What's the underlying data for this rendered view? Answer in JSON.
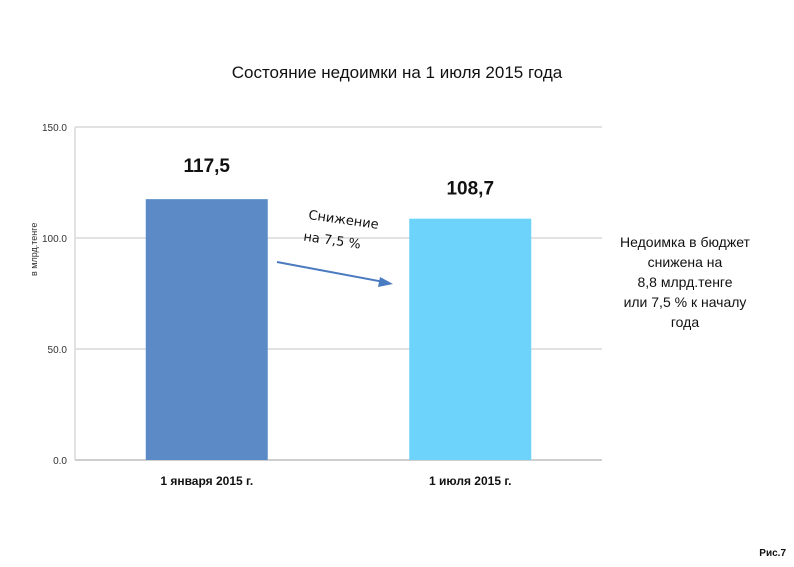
{
  "chart_data": {
    "type": "bar",
    "title": "Состояние недоимки на 1 июля 2015 года",
    "ylabel": "в млрд.тенге",
    "xlabel": "",
    "categories": [
      "1 января 2015 г.",
      "1 июля 2015 г."
    ],
    "values": [
      117.5,
      108.7
    ],
    "data_labels": [
      "117,5",
      "108,7"
    ],
    "bar_colors": [
      "#5b8ac6",
      "#6dd3fb"
    ],
    "ylim": [
      0,
      150
    ],
    "yticks": [
      0,
      50,
      100,
      150
    ],
    "ytick_labels": [
      "0.0",
      "50.0",
      "100.0",
      "150.0"
    ],
    "grid": true,
    "legend": "none",
    "annotation": {
      "lines": [
        "Снижение",
        "на  7,5 %"
      ]
    }
  },
  "side_note": {
    "lines": [
      "Недоимка в бюджет",
      "снижена  на",
      "8,8 млрд.тенге",
      "или 7,5 %  к началу",
      "года"
    ]
  },
  "figure_label": "Рис.7",
  "colors": {
    "arrow": "#4a7bc0"
  }
}
